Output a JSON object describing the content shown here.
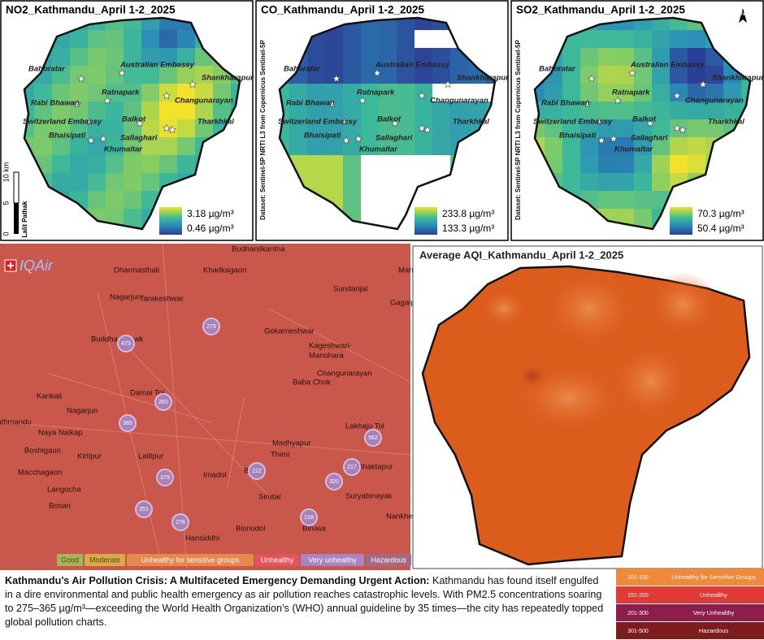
{
  "panels": [
    {
      "title": "NO2_Kathmandu_April 1-2_2025",
      "legend_max": "3.18 µg/m³",
      "legend_min": "0.46 µg/m³"
    },
    {
      "title": "CO_Kathmandu_April 1-2_2025",
      "legend_max": "233.8 µg/m³",
      "legend_min": "133.3 µg/m³"
    },
    {
      "title": "SO2_Kathmandu_April 1-2_2025",
      "legend_max": "70.3 µg/m³",
      "legend_min": "50.4 µg/m³"
    }
  ],
  "places": [
    "Bahoratar",
    "Australian Embassy",
    "Shankharapur",
    "Rabi Bhawan",
    "Ratnapark",
    "Changunarayan",
    "Switzerland Embassy",
    "Balkot",
    "Tharkhkal",
    "Bhaisipati",
    "Sallaghari",
    "Khumaltar"
  ],
  "scale_bar": {
    "labels": [
      "10 km",
      "5",
      "0"
    ],
    "author": "Lalit Pathak"
  },
  "dataset_note": "Dataset: Sentinel-5P NRTI L3 from Copernicus Sentinel-5P",
  "north": "N",
  "iqair": {
    "logo": "IQAir",
    "places": [
      "Budhanilkantha",
      "Dharmasthali",
      "Khadkagaon",
      "Mahankal",
      "Sundarijal",
      "Nagarjun",
      "Tarakeshwar",
      "Gagalphedi",
      "Buddha Chowk",
      "Gokarneshwar",
      "Kageshwari-",
      "Manohara",
      "Changunarayan",
      "Baba Chok",
      "Kankali",
      "Damai Tol",
      "Nagarjun",
      "Lakhaju Tol",
      "Naya Naikap",
      "Boshigaun",
      "Kirtipur",
      "Lalitpur",
      "Madhyapur",
      "Thimi",
      "Macchagaon",
      "Imadol",
      "Balkot",
      "Bhaktapur",
      "Sirutar",
      "Suryabinayak",
      "Langocha",
      "Bosan",
      "Hansiddhi",
      "Bisnudol",
      "Biruwa",
      "Nankhel",
      "Kathmandu"
    ],
    "stations": [
      279,
      473,
      281,
      385,
      562,
      379,
      222,
      217,
      320,
      251,
      276,
      218
    ],
    "legend": [
      "Good",
      "Moderate",
      "Unhealthy for sensitive groups",
      "Unhealthy",
      "Very unhealthy",
      "Hazardous"
    ]
  },
  "aqi_map": {
    "title": "Average AQI_Kathmandu_April 1-2_2025"
  },
  "caption": {
    "lead": "Kathmandu’s Air Pollution Crisis: A Multifaceted Emergency Demanding Urgent Action:",
    "body": "Kathmandu has found itself engulfed in a dire environmental and public health emergency as air pollution reaches catastrophic levels. With PM2.5 concentrations soaring to 275–365 µg/m³—exceeding the World Health Organization’s (WHO) annual guideline by 35 times—the city has repeatedly topped global pollution charts."
  },
  "aqi_legend": [
    {
      "range": "101-150",
      "label": "Unhealthy for Sensitive Groups"
    },
    {
      "range": "151-200",
      "label": "Unhealthy"
    },
    {
      "range": "201-300",
      "label": "Very Unhealthy"
    },
    {
      "range": "301-500",
      "label": "Hazardous"
    }
  ]
}
